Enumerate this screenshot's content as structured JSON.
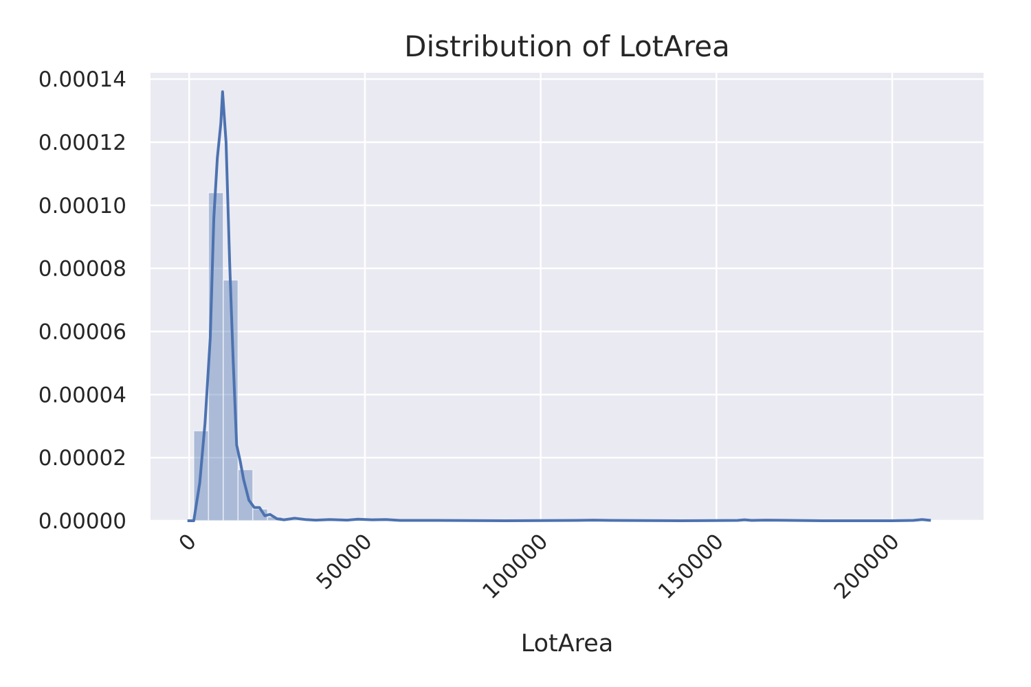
{
  "chart_data": {
    "type": "bar",
    "title": "Distribution of LotArea",
    "xlabel": "LotArea",
    "ylabel": "",
    "xlim": [
      -11000,
      226000
    ],
    "ylim": [
      0,
      0.000142
    ],
    "xticks": [
      0,
      50000,
      100000,
      150000,
      200000
    ],
    "xtick_labels": [
      "0",
      "50000",
      "100000",
      "150000",
      "200000"
    ],
    "yticks": [
      0,
      2e-05,
      4e-05,
      6e-05,
      8e-05,
      0.0001,
      0.00012,
      0.00014
    ],
    "ytick_labels": [
      "0.00000",
      "0.00002",
      "0.00004",
      "0.00006",
      "0.00008",
      "0.00010",
      "0.00012",
      "0.00014"
    ],
    "grid": true,
    "histogram": {
      "bin_width": 4200,
      "bin_edges": [
        1300,
        5500,
        9700,
        13900,
        18100,
        22300,
        26500,
        30700,
        34900,
        39100,
        43300,
        47500,
        51700,
        55900
      ],
      "values": [
        2.85e-05,
        0.000104,
        7.63e-05,
        1.62e-05,
        3.7e-06,
        1.2e-06,
        4e-07,
        3e-07,
        2e-07,
        1e-07,
        1e-07,
        1e-07,
        1e-07
      ]
    },
    "kde": {
      "x": [
        -500,
        1300,
        3000,
        4500,
        6000,
        7000,
        8000,
        9000,
        9500,
        10500,
        11500,
        12500,
        13500,
        14500,
        15500,
        17000,
        18500,
        20000,
        21500,
        23000,
        25000,
        27000,
        30000,
        33000,
        36000,
        40000,
        45000,
        48000,
        52000,
        56000,
        60000,
        70000,
        90000,
        110000,
        115000,
        120000,
        140000,
        156000,
        158000,
        160000,
        164000,
        180000,
        200000,
        206000,
        208500,
        211000
      ],
      "y": [
        0,
        0,
        1.2e-05,
        3.1e-05,
        5.8e-05,
        9.6e-05,
        0.000115,
        0.000126,
        0.000136,
        0.00012,
        8.2e-05,
        5.1e-05,
        2.4e-05,
        1.9e-05,
        1.3e-05,
        6.5e-06,
        4.2e-06,
        4.2e-06,
        1.6e-06,
        2e-06,
        6e-07,
        3e-07,
        8e-07,
        4e-07,
        2e-07,
        4e-07,
        2e-07,
        5e-07,
        3e-07,
        4e-07,
        1e-07,
        1e-07,
        0.0,
        1e-07,
        2e-07,
        1e-07,
        0.0,
        1e-07,
        3e-07,
        1e-07,
        2e-07,
        0.0,
        0.0,
        1e-07,
        4e-07,
        1e-07
      ]
    },
    "colors": {
      "background": "#eaeaf2",
      "grid": "#ffffff",
      "bar_fill": "#4c72b0",
      "kde_line": "#4c72b0",
      "text": "#262626"
    }
  }
}
